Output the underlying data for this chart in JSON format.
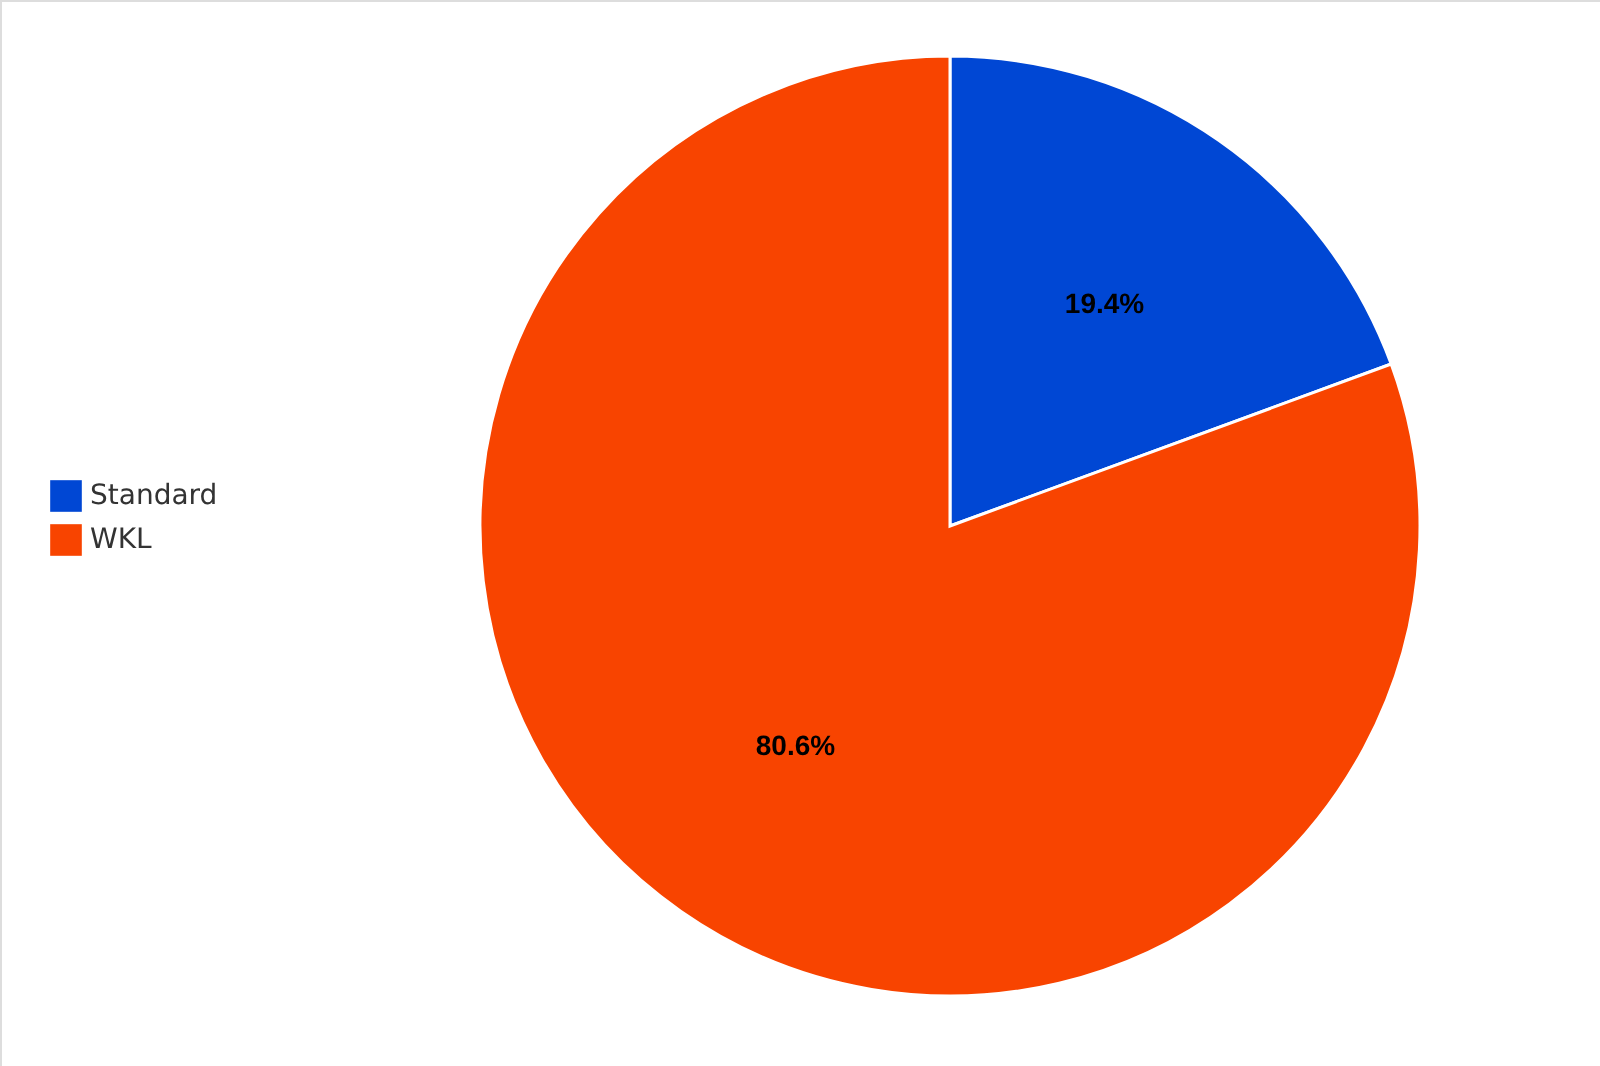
{
  "chart_data": {
    "type": "pie",
    "categories": [
      "Standard",
      "WKL"
    ],
    "values": [
      19.4,
      80.6
    ],
    "colors": [
      "#0047d4",
      "#f84400"
    ],
    "value_labels": [
      "19.4%",
      "80.6%"
    ],
    "legend": "left"
  }
}
